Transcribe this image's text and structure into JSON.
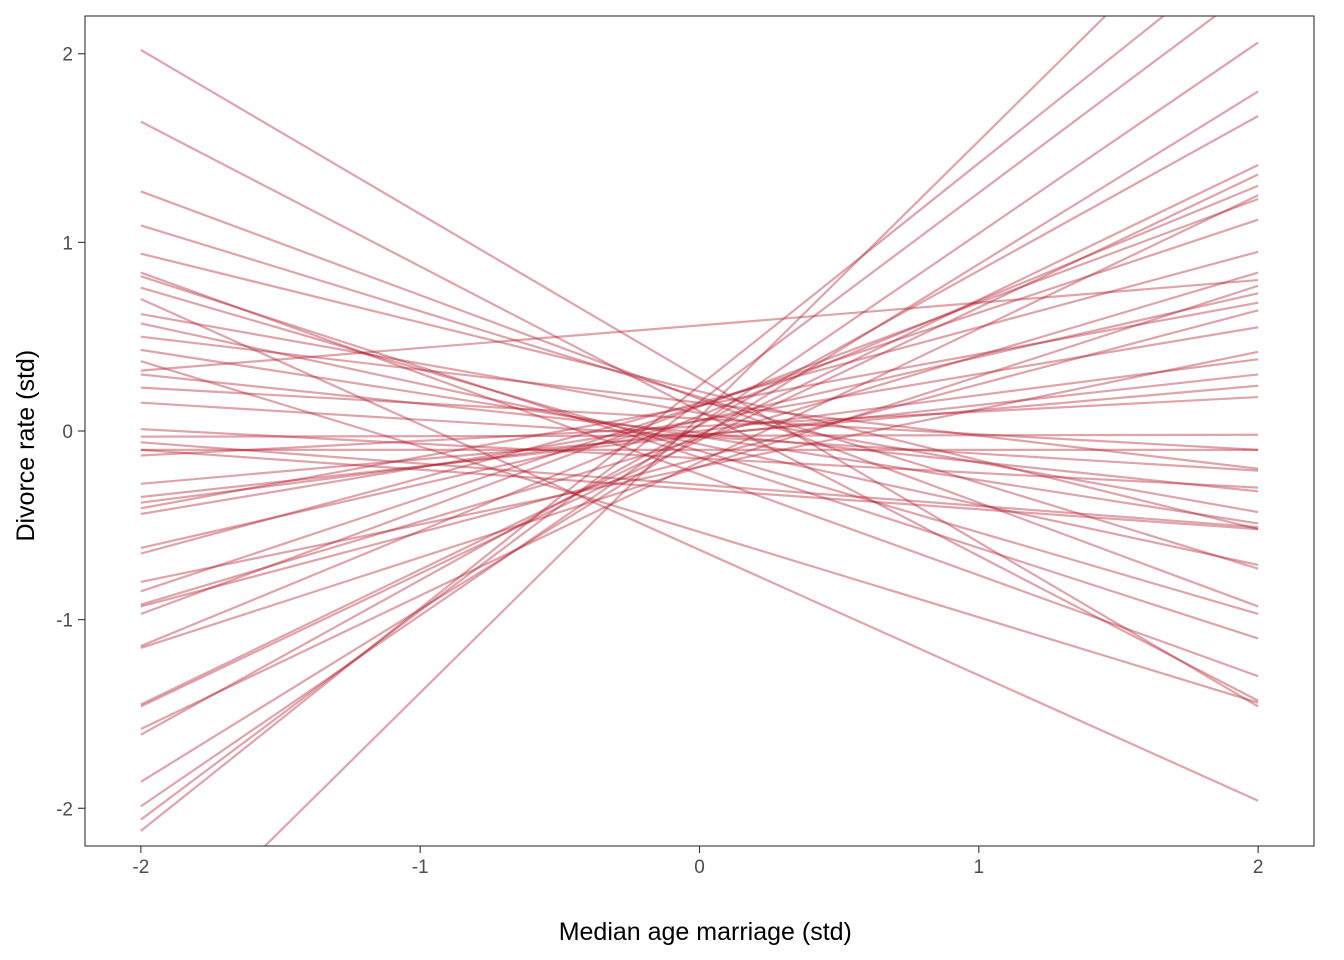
{
  "chart_data": {
    "type": "line",
    "title": "",
    "xlabel": "Median age marriage (std)",
    "ylabel": "Divorce rate (std)",
    "xlim": [
      -2.2,
      2.2
    ],
    "ylim": [
      -2.2,
      2.2
    ],
    "x_ticks": [
      -2,
      -1,
      0,
      1,
      2
    ],
    "x_tick_labels": [
      "-2",
      "-1",
      "0",
      "1",
      "2"
    ],
    "y_ticks": [
      -2,
      -1,
      0,
      1,
      2
    ],
    "y_tick_labels": [
      "-2",
      "-1",
      "0",
      "1",
      "2"
    ],
    "grid": false,
    "legend": "none",
    "line_color": "#b2182b",
    "line_opacity": 0.4,
    "series": [
      {
        "x": [
          -2,
          2
        ],
        "y": [
          2.02,
          -1.46
        ]
      },
      {
        "x": [
          -2,
          2
        ],
        "y": [
          1.64,
          -1.43
        ]
      },
      {
        "x": [
          -2,
          2
        ],
        "y": [
          1.27,
          -0.93
        ]
      },
      {
        "x": [
          -2,
          2
        ],
        "y": [
          1.09,
          -0.73
        ]
      },
      {
        "x": [
          -2,
          2
        ],
        "y": [
          0.94,
          -0.52
        ]
      },
      {
        "x": [
          -2,
          2
        ],
        "y": [
          0.84,
          -1.3
        ]
      },
      {
        "x": [
          -2,
          2
        ],
        "y": [
          0.82,
          -1.1
        ]
      },
      {
        "x": [
          -2,
          2
        ],
        "y": [
          0.76,
          -0.97
        ]
      },
      {
        "x": [
          -2,
          2
        ],
        "y": [
          0.7,
          -1.96
        ]
      },
      {
        "x": [
          -2,
          2
        ],
        "y": [
          0.62,
          -0.43
        ]
      },
      {
        "x": [
          -2,
          2
        ],
        "y": [
          0.57,
          -0.71
        ]
      },
      {
        "x": [
          -2,
          2
        ],
        "y": [
          0.5,
          -0.2
        ]
      },
      {
        "x": [
          -2,
          2
        ],
        "y": [
          0.43,
          -0.49
        ]
      },
      {
        "x": [
          -2,
          2
        ],
        "y": [
          0.37,
          -1.44
        ]
      },
      {
        "x": [
          -2,
          2
        ],
        "y": [
          0.32,
          0.8
        ]
      },
      {
        "x": [
          -2,
          2
        ],
        "y": [
          0.3,
          -0.32
        ]
      },
      {
        "x": [
          -2,
          2
        ],
        "y": [
          0.23,
          -0.1
        ]
      },
      {
        "x": [
          -2,
          2
        ],
        "y": [
          0.15,
          -0.21
        ]
      },
      {
        "x": [
          -2,
          2
        ],
        "y": [
          0.01,
          -0.3
        ]
      },
      {
        "x": [
          -2,
          2
        ],
        "y": [
          -0.03,
          -0.02
        ]
      },
      {
        "x": [
          -2,
          2
        ],
        "y": [
          -0.06,
          -0.51
        ]
      },
      {
        "x": [
          -2,
          2
        ],
        "y": [
          -0.1,
          -0.1
        ]
      },
      {
        "x": [
          -2,
          2
        ],
        "y": [
          -0.1,
          -0.52
        ]
      },
      {
        "x": [
          -2,
          2
        ],
        "y": [
          -0.13,
          0.18
        ]
      },
      {
        "x": [
          -2,
          2
        ],
        "y": [
          -0.28,
          0.24
        ]
      },
      {
        "x": [
          -2,
          2
        ],
        "y": [
          -0.35,
          0.3
        ]
      },
      {
        "x": [
          -2,
          2
        ],
        "y": [
          -0.38,
          0.38
        ]
      },
      {
        "x": [
          -2,
          2
        ],
        "y": [
          -0.41,
          0.68
        ]
      },
      {
        "x": [
          -2,
          2
        ],
        "y": [
          -0.44,
          0.55
        ]
      },
      {
        "x": [
          -2,
          2
        ],
        "y": [
          -0.62,
          0.73
        ]
      },
      {
        "x": [
          -2,
          2
        ],
        "y": [
          -0.65,
          0.95
        ]
      },
      {
        "x": [
          -2,
          2
        ],
        "y": [
          -0.8,
          0.42
        ]
      },
      {
        "x": [
          -2,
          2
        ],
        "y": [
          -0.85,
          1.12
        ]
      },
      {
        "x": [
          -2,
          2
        ],
        "y": [
          -0.92,
          0.84
        ]
      },
      {
        "x": [
          -2,
          2
        ],
        "y": [
          -0.93,
          0.64
        ]
      },
      {
        "x": [
          -2,
          2
        ],
        "y": [
          -0.97,
          1.23
        ]
      },
      {
        "x": [
          -2,
          2
        ],
        "y": [
          -1.14,
          1.3
        ]
      },
      {
        "x": [
          -2,
          2
        ],
        "y": [
          -1.15,
          0.77
        ]
      },
      {
        "x": [
          -2,
          2
        ],
        "y": [
          -1.45,
          1.41
        ]
      },
      {
        "x": [
          -2,
          2
        ],
        "y": [
          -1.46,
          1.36
        ]
      },
      {
        "x": [
          -2,
          2
        ],
        "y": [
          -1.58,
          1.25
        ]
      },
      {
        "x": [
          -2,
          2
        ],
        "y": [
          -1.61,
          1.67
        ]
      },
      {
        "x": [
          -2,
          2
        ],
        "y": [
          -1.86,
          1.8
        ]
      },
      {
        "x": [
          -2,
          2
        ],
        "y": [
          -1.99,
          2.06
        ]
      },
      {
        "x": [
          -2,
          2
        ],
        "y": [
          -2.06,
          2.37
        ]
      },
      {
        "x": [
          -2,
          2
        ],
        "y": [
          -2.12,
          2.6
        ]
      },
      {
        "x": [
          -2,
          2
        ],
        "y": [
          -2.85,
          3.0
        ]
      }
    ]
  }
}
